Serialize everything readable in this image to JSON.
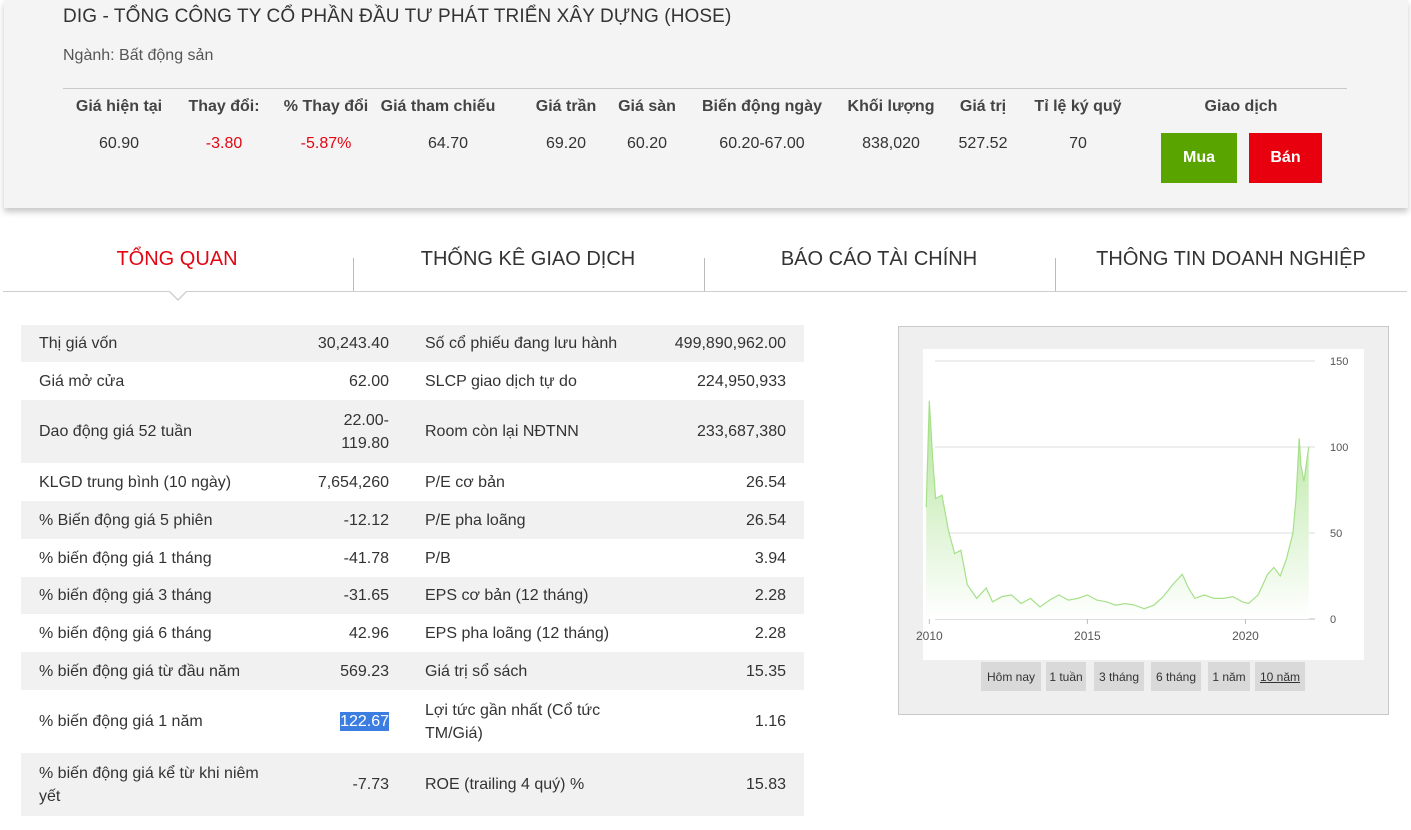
{
  "header": {
    "title": "DIG - TỔNG CÔNG TY CỔ PHẦN ĐẦU TƯ PHÁT TRIỂN XÂY DỰNG (HOSE)",
    "industry": "Ngành: Bất động sản"
  },
  "quote": {
    "columns": [
      {
        "label": "Giá hiện tại",
        "value": "60.90"
      },
      {
        "label": "Thay đổi:",
        "value": "-3.80"
      },
      {
        "label": "% Thay đổi",
        "value": "-5.87%"
      },
      {
        "label": "Giá tham chiếu",
        "value": "64.70"
      },
      {
        "label": "Giá trần",
        "value": "69.20"
      },
      {
        "label": "Giá sàn",
        "value": "60.20"
      },
      {
        "label": "Biến động ngày",
        "value": "60.20-67.00"
      },
      {
        "label": "Khối lượng",
        "value": "838,020"
      },
      {
        "label": "Giá trị",
        "value": "527.52"
      },
      {
        "label": "Tỉ lệ ký quỹ",
        "value": "70"
      }
    ],
    "trade_label": "Giao dịch",
    "buy_label": "Mua",
    "sell_label": "Bán",
    "negative_color": "#e30613",
    "buy_color": "#5aa400",
    "sell_color": "#e8000e"
  },
  "tabs": [
    {
      "label": "TỔNG QUAN",
      "active": true
    },
    {
      "label": "THỐNG KÊ GIAO DỊCH",
      "active": false
    },
    {
      "label": "BÁO CÁO TÀI CHÍNH",
      "active": false
    },
    {
      "label": "THÔNG TIN DOANH NGHIỆP",
      "active": false
    }
  ],
  "stats": [
    {
      "l1": "Thị giá vốn",
      "v1": "30,243.40",
      "l2": "Số cổ phiếu đang lưu hành",
      "v2": "499,890,962.00"
    },
    {
      "l1": "Giá mở cửa",
      "v1": "62.00",
      "l2": "SLCP giao dịch tự do",
      "v2": "224,950,933"
    },
    {
      "l1": "Dao động giá 52 tuần",
      "v1": "22.00-119.80",
      "l2": "Room còn lại NĐTNN",
      "v2": "233,687,380"
    },
    {
      "l1": "KLGD trung bình (10 ngày)",
      "v1": "7,654,260",
      "l2": "P/E cơ bản",
      "v2": "26.54"
    },
    {
      "l1": "% Biến động giá 5 phiên",
      "v1": "-12.12",
      "l2": "P/E pha loãng",
      "v2": "26.54"
    },
    {
      "l1": "% biến động giá 1 tháng",
      "v1": "-41.78",
      "l2": "P/B",
      "v2": "3.94"
    },
    {
      "l1": "% biến động giá 3 tháng",
      "v1": "-31.65",
      "l2": "EPS cơ bản (12 tháng)",
      "v2": "2.28"
    },
    {
      "l1": "% biến động giá 6 tháng",
      "v1": "42.96",
      "l2": "EPS pha loãng (12 tháng)",
      "v2": "2.28"
    },
    {
      "l1": "% biến động giá từ đầu năm",
      "v1": "569.23",
      "l2": "Giá trị sổ sách",
      "v2": "15.35"
    },
    {
      "l1": "% biến động giá 1 năm",
      "v1": "122.67",
      "l2": "Lợi tức gần nhất (Cổ tức TM/Giá)",
      "v2": "1.16"
    },
    {
      "l1": "% biến động giá kể từ khi niêm yết",
      "v1": "-7.73",
      "l2": "ROE (trailing 4 quý) %",
      "v2": "15.83"
    }
  ],
  "chart_data": {
    "type": "area",
    "x": [
      2009.9,
      2010.0,
      2010.1,
      2010.2,
      2010.4,
      2010.6,
      2010.8,
      2011.0,
      2011.2,
      2011.5,
      2011.8,
      2012.0,
      2012.3,
      2012.6,
      2012.9,
      2013.2,
      2013.5,
      2013.8,
      2014.1,
      2014.4,
      2014.7,
      2015.0,
      2015.3,
      2015.6,
      2015.9,
      2016.2,
      2016.5,
      2016.8,
      2017.1,
      2017.4,
      2017.7,
      2018.0,
      2018.2,
      2018.4,
      2018.7,
      2019.0,
      2019.3,
      2019.6,
      2019.9,
      2020.1,
      2020.4,
      2020.7,
      2020.9,
      2021.1,
      2021.3,
      2021.5,
      2021.6,
      2021.7,
      2021.75,
      2021.85,
      2022.0
    ],
    "y": [
      65,
      127,
      95,
      70,
      72,
      52,
      38,
      40,
      20,
      12,
      18,
      10,
      13,
      14,
      9,
      12,
      7,
      11,
      14,
      11,
      12,
      14,
      11,
      10,
      8,
      9,
      8,
      6,
      8,
      13,
      20,
      26,
      18,
      12,
      14,
      12,
      12,
      13,
      10,
      9,
      14,
      26,
      30,
      25,
      35,
      50,
      70,
      105,
      90,
      80,
      100
    ],
    "xlim": [
      2009.8,
      2022.2
    ],
    "ylim": [
      0,
      150
    ],
    "x_ticks": [
      "2010",
      "2015",
      "2020"
    ],
    "x_tick_values": [
      2010,
      2015,
      2020
    ],
    "y_ticks": [
      "0",
      "50",
      "100",
      "150"
    ],
    "y_tick_values": [
      0,
      50,
      100,
      150
    ],
    "grid": true,
    "line_color": "#a6e08a",
    "fill_top_color": "#b2e59a"
  },
  "range_buttons": [
    {
      "label": "Hôm nay",
      "active": false
    },
    {
      "label": "1 tuần",
      "active": false
    },
    {
      "label": "3 tháng",
      "active": false
    },
    {
      "label": "6 tháng",
      "active": false
    },
    {
      "label": "1 năm",
      "active": false
    },
    {
      "label": "10 năm",
      "active": true
    }
  ]
}
